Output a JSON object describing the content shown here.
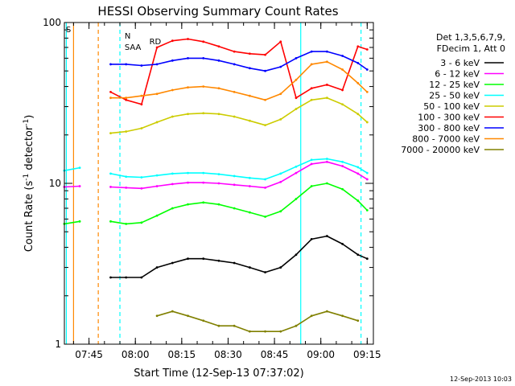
{
  "chart_data": {
    "type": "line",
    "title": "HESSI Observing Summary Count Rates",
    "xlabel": "Start Time (12-Sep-13 07:37:02)",
    "ylabel": "Count Rate (s⁻¹ detector⁻¹)",
    "ylabel_parts": {
      "main": "Count Rate (s",
      "exp1": "-1",
      "mid": " detector",
      "exp2": "-1",
      "end": ")"
    },
    "yscale": "log",
    "xlim": [
      "07:37:02",
      "09:17:00"
    ],
    "ylim": [
      1,
      100
    ],
    "x_ticks": [
      "07:45",
      "08:00",
      "08:15",
      "08:30",
      "08:45",
      "09:00",
      "09:15"
    ],
    "y_ticks": [
      {
        "value": 1,
        "label": "1"
      },
      {
        "value": 10,
        "label": "10"
      },
      {
        "value": 100,
        "label": "100"
      }
    ],
    "grid": false,
    "legend_position": "right",
    "legend_header": [
      "Det 1,3,5,6,7,9,",
      "FDecim 1, Att 0"
    ],
    "x": [
      "07:37",
      "07:42",
      "07:47",
      "07:52",
      "07:57",
      "08:02",
      "08:07",
      "08:12",
      "08:17",
      "08:22",
      "08:27",
      "08:32",
      "08:37",
      "08:42",
      "08:47",
      "08:52",
      "08:57",
      "09:02",
      "09:07",
      "09:12",
      "09:15"
    ],
    "series": [
      {
        "name": "3 - 6 keV",
        "color": "#000000",
        "values": [
          null,
          null,
          null,
          2.6,
          2.6,
          2.6,
          3.0,
          3.2,
          3.4,
          3.4,
          3.3,
          3.2,
          3.0,
          2.8,
          3.0,
          3.6,
          4.5,
          4.7,
          4.2,
          3.6,
          3.4
        ]
      },
      {
        "name": "6 - 12 keV",
        "color": "#ff00ff",
        "values": [
          9.5,
          9.6,
          null,
          9.5,
          9.4,
          9.3,
          9.6,
          9.9,
          10.1,
          10.1,
          10.0,
          9.8,
          9.6,
          9.4,
          10.2,
          11.6,
          13.2,
          13.6,
          12.8,
          11.5,
          10.6
        ]
      },
      {
        "name": "12 - 25 keV",
        "color": "#00ff00",
        "values": [
          5.6,
          5.8,
          null,
          5.8,
          5.6,
          5.7,
          6.3,
          7.0,
          7.4,
          7.6,
          7.4,
          7.0,
          6.6,
          6.2,
          6.7,
          8.0,
          9.6,
          10.0,
          9.2,
          7.8,
          6.8
        ]
      },
      {
        "name": "25 - 50 keV",
        "color": "#00ffff",
        "values": [
          12.0,
          12.5,
          null,
          11.5,
          11.0,
          10.9,
          11.2,
          11.5,
          11.6,
          11.6,
          11.4,
          11.1,
          10.8,
          10.6,
          11.5,
          12.7,
          14.0,
          14.2,
          13.6,
          12.6,
          11.6
        ]
      },
      {
        "name": "50 - 100 keV",
        "color": "#cccc00",
        "values": [
          null,
          null,
          null,
          20.5,
          21.0,
          22.0,
          24.0,
          26.0,
          27.0,
          27.3,
          27.0,
          26.0,
          24.5,
          23.0,
          25.0,
          29.0,
          33.0,
          34.0,
          31.0,
          27.0,
          24.0
        ]
      },
      {
        "name": "100 - 300 keV",
        "color": "#ff0000",
        "values": [
          null,
          null,
          null,
          37.0,
          33.0,
          31.0,
          70.0,
          77.0,
          79.0,
          76.0,
          71.0,
          66.0,
          64.0,
          63.0,
          76.0,
          34.0,
          39.0,
          41.0,
          38.0,
          71.0,
          68.0
        ]
      },
      {
        "name": "300 - 800 keV",
        "color": "#0000ff",
        "values": [
          null,
          null,
          null,
          55.0,
          55.0,
          54.0,
          55.0,
          58.0,
          60.0,
          60.0,
          58.0,
          55.0,
          52.0,
          50.0,
          53.0,
          60.0,
          66.0,
          66.0,
          62.0,
          56.0,
          51.0
        ]
      },
      {
        "name": "800 - 7000 keV",
        "color": "#ff8800",
        "values": [
          null,
          null,
          null,
          34.0,
          34.0,
          35.0,
          36.0,
          38.0,
          39.5,
          40.0,
          39.0,
          37.0,
          35.0,
          33.0,
          36.0,
          44.0,
          55.0,
          57.0,
          51.0,
          42.0,
          37.0
        ]
      },
      {
        "name": "7000 - 20000 keV",
        "color": "#808000",
        "values": [
          null,
          null,
          null,
          null,
          null,
          null,
          1.5,
          1.6,
          1.5,
          1.4,
          1.3,
          1.3,
          1.2,
          1.2,
          1.2,
          1.3,
          1.5,
          1.6,
          1.5,
          1.4,
          null
        ]
      }
    ],
    "flag_labels": [
      {
        "label": "S",
        "color": "#ff8800",
        "at": "07:37"
      },
      {
        "label": "N",
        "color": "#00ffff",
        "at": "07:56"
      },
      {
        "label": "RD",
        "color": "#008000",
        "at": "08:04"
      },
      {
        "label": "SAA",
        "color": "#008000",
        "at": "07:56"
      }
    ],
    "vertical_markers": [
      {
        "at": "07:37:40",
        "color": "#00ffff",
        "style": "solid"
      },
      {
        "at": "07:40:00",
        "color": "#ff8800",
        "style": "solid"
      },
      {
        "at": "07:48:00",
        "color": "#ff8800",
        "style": "dashed"
      },
      {
        "at": "07:55:00",
        "color": "#00ffff",
        "style": "dashed"
      },
      {
        "at": "08:53:30",
        "color": "#00ffff",
        "style": "solid"
      },
      {
        "at": "09:13:00",
        "color": "#00ffff",
        "style": "dashed"
      }
    ],
    "footer_date": "12-Sep-2013 10:03"
  }
}
